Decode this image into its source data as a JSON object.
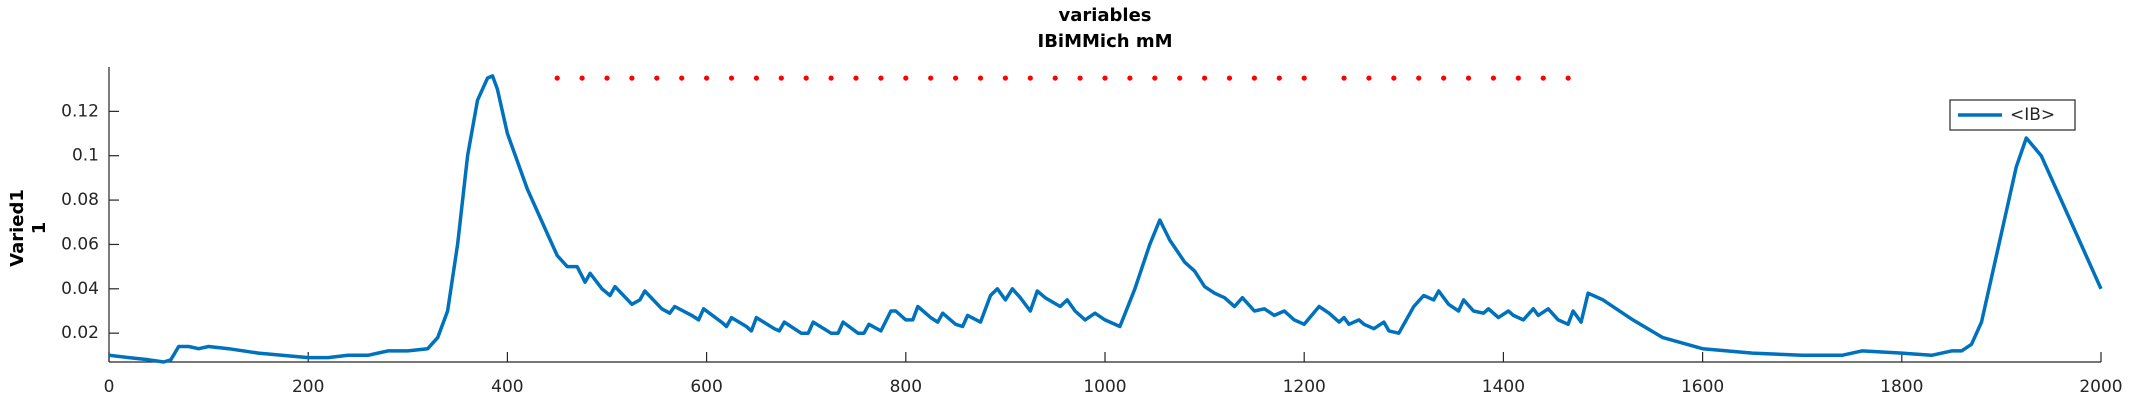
{
  "chart_data": {
    "type": "line",
    "title": [
      "variables",
      "IBiMMich mM"
    ],
    "ylabel": [
      "Varied1",
      "1"
    ],
    "xlim": [
      0,
      2000
    ],
    "xticks": [
      0,
      200,
      400,
      600,
      800,
      1000,
      1200,
      1400,
      1600,
      1800,
      2000
    ],
    "ylim": [
      0.007,
      0.14
    ],
    "yticks": [
      0.02,
      0.04,
      0.06,
      0.08,
      0.1,
      0.12
    ],
    "grid": false,
    "legend": "upper right",
    "series": [
      {
        "name": "<IB>",
        "color": "#0072bd",
        "x": [
          0,
          20,
          40,
          55,
          62,
          70,
          80,
          90,
          100,
          120,
          150,
          200,
          220,
          240,
          260,
          280,
          300,
          320,
          330,
          340,
          350,
          360,
          370,
          380,
          385,
          390,
          400,
          420,
          440,
          450,
          460,
          470,
          478,
          483,
          495,
          503,
          508,
          525,
          533,
          538,
          555,
          563,
          568,
          585,
          592,
          597,
          615,
          620,
          625,
          640,
          645,
          650,
          668,
          673,
          678,
          695,
          702,
          707,
          725,
          732,
          737,
          752,
          758,
          763,
          775,
          785,
          790,
          800,
          807,
          812,
          825,
          832,
          837,
          850,
          857,
          862,
          875,
          885,
          892,
          900,
          907,
          915,
          925,
          932,
          940,
          955,
          962,
          970,
          980,
          990,
          1000,
          1015,
          1030,
          1045,
          1055,
          1065,
          1080,
          1090,
          1100,
          1110,
          1120,
          1130,
          1138,
          1150,
          1160,
          1170,
          1180,
          1190,
          1200,
          1215,
          1225,
          1235,
          1240,
          1245,
          1255,
          1260,
          1270,
          1280,
          1285,
          1295,
          1310,
          1320,
          1330,
          1335,
          1345,
          1355,
          1360,
          1370,
          1380,
          1385,
          1395,
          1405,
          1410,
          1420,
          1430,
          1435,
          1445,
          1455,
          1465,
          1470,
          1478,
          1485,
          1500,
          1530,
          1560,
          1600,
          1650,
          1700,
          1740,
          1760,
          1800,
          1830,
          1850,
          1860,
          1870,
          1880,
          1900,
          1915,
          1925,
          1940,
          1960,
          1980,
          2000
        ],
        "values": [
          0.01,
          0.009,
          0.008,
          0.007,
          0.008,
          0.014,
          0.014,
          0.013,
          0.014,
          0.013,
          0.011,
          0.009,
          0.009,
          0.01,
          0.01,
          0.012,
          0.012,
          0.013,
          0.018,
          0.03,
          0.06,
          0.1,
          0.125,
          0.135,
          0.136,
          0.13,
          0.11,
          0.085,
          0.065,
          0.055,
          0.05,
          0.05,
          0.043,
          0.047,
          0.04,
          0.037,
          0.041,
          0.033,
          0.035,
          0.039,
          0.031,
          0.029,
          0.032,
          0.028,
          0.026,
          0.031,
          0.025,
          0.023,
          0.027,
          0.023,
          0.021,
          0.027,
          0.022,
          0.021,
          0.025,
          0.02,
          0.02,
          0.025,
          0.02,
          0.02,
          0.025,
          0.02,
          0.02,
          0.024,
          0.021,
          0.03,
          0.03,
          0.026,
          0.026,
          0.032,
          0.027,
          0.025,
          0.029,
          0.024,
          0.023,
          0.028,
          0.025,
          0.037,
          0.04,
          0.035,
          0.04,
          0.036,
          0.03,
          0.039,
          0.036,
          0.032,
          0.035,
          0.03,
          0.026,
          0.029,
          0.026,
          0.023,
          0.04,
          0.06,
          0.071,
          0.062,
          0.052,
          0.048,
          0.041,
          0.038,
          0.036,
          0.032,
          0.036,
          0.03,
          0.031,
          0.028,
          0.03,
          0.026,
          0.024,
          0.032,
          0.029,
          0.025,
          0.027,
          0.024,
          0.026,
          0.024,
          0.022,
          0.025,
          0.021,
          0.02,
          0.032,
          0.037,
          0.035,
          0.039,
          0.033,
          0.03,
          0.035,
          0.03,
          0.029,
          0.031,
          0.027,
          0.03,
          0.028,
          0.026,
          0.031,
          0.028,
          0.031,
          0.026,
          0.024,
          0.03,
          0.025,
          0.038,
          0.035,
          0.026,
          0.018,
          0.013,
          0.011,
          0.01,
          0.01,
          0.012,
          0.011,
          0.01,
          0.012,
          0.012,
          0.015,
          0.025,
          0.065,
          0.095,
          0.108,
          0.1,
          0.08,
          0.06,
          0.04
        ]
      },
      {
        "color": "#ff0000",
        "marker": "dot",
        "x": [
          450,
          475,
          500,
          525,
          550,
          575,
          600,
          625,
          650,
          675,
          700,
          725,
          750,
          775,
          800,
          825,
          850,
          875,
          900,
          925,
          950,
          975,
          1000,
          1025,
          1050,
          1075,
          1100,
          1125,
          1150,
          1175,
          1200,
          1240,
          1265,
          1290,
          1315,
          1340,
          1365,
          1390,
          1415,
          1440,
          1465
        ],
        "values": [
          0.135,
          0.135,
          0.135,
          0.135,
          0.135,
          0.135,
          0.135,
          0.135,
          0.135,
          0.135,
          0.135,
          0.135,
          0.135,
          0.135,
          0.135,
          0.135,
          0.135,
          0.135,
          0.135,
          0.135,
          0.135,
          0.135,
          0.135,
          0.135,
          0.135,
          0.135,
          0.135,
          0.135,
          0.135,
          0.135,
          0.135,
          0.135,
          0.135,
          0.135,
          0.135,
          0.135,
          0.135,
          0.135,
          0.135,
          0.135,
          0.135
        ]
      }
    ]
  }
}
